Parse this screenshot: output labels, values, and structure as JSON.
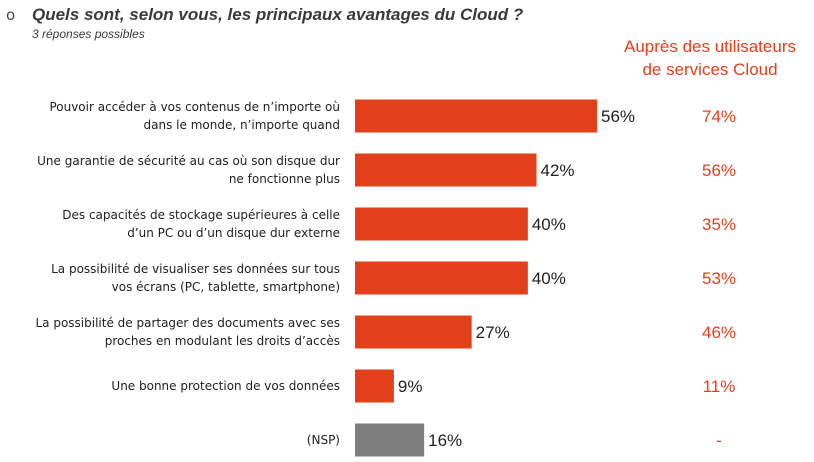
{
  "header": {
    "bullet": "o",
    "title": "Quels sont, selon vous, les principaux avantages du Cloud ?",
    "subtitle": "3 réponses possibles"
  },
  "side_header": {
    "line1": "Auprès des utilisateurs",
    "line2": "de services Cloud"
  },
  "colors": {
    "bar": "#e2401b",
    "bar_nsp": "#7f7f7f",
    "side_text": "#e2401b"
  },
  "chart_data": {
    "type": "bar",
    "orientation": "horizontal",
    "categories": [
      [
        "Pouvoir accéder à vos contenus de n’importe où",
        "dans le monde, n’importe quand"
      ],
      [
        "Une garantie de sécurité au cas où son disque dur",
        "ne fonctionne plus"
      ],
      [
        "Des capacités de stockage supérieures à celle",
        "d’un PC ou d’un disque dur externe"
      ],
      [
        "La possibilité de visualiser ses données sur tous",
        "vos écrans (PC, tablette, smartphone)"
      ],
      [
        "La possibilité de partager des documents avec ses",
        "proches en modulant les droits d’accès"
      ],
      [
        "Une bonne protection de vos données"
      ],
      [
        "(NSP)"
      ]
    ],
    "values": [
      56,
      42,
      40,
      40,
      27,
      9,
      16
    ],
    "value_labels": [
      "56%",
      "42%",
      "40%",
      "40%",
      "27%",
      "9%",
      "16%"
    ],
    "highlight": [
      false,
      false,
      false,
      false,
      false,
      false,
      true
    ],
    "side_values": [
      "74%",
      "56%",
      "35%",
      "53%",
      "46%",
      "11%",
      "-"
    ],
    "xlim": [
      0,
      100
    ],
    "xlabel": "",
    "ylabel": "",
    "grid": false
  }
}
